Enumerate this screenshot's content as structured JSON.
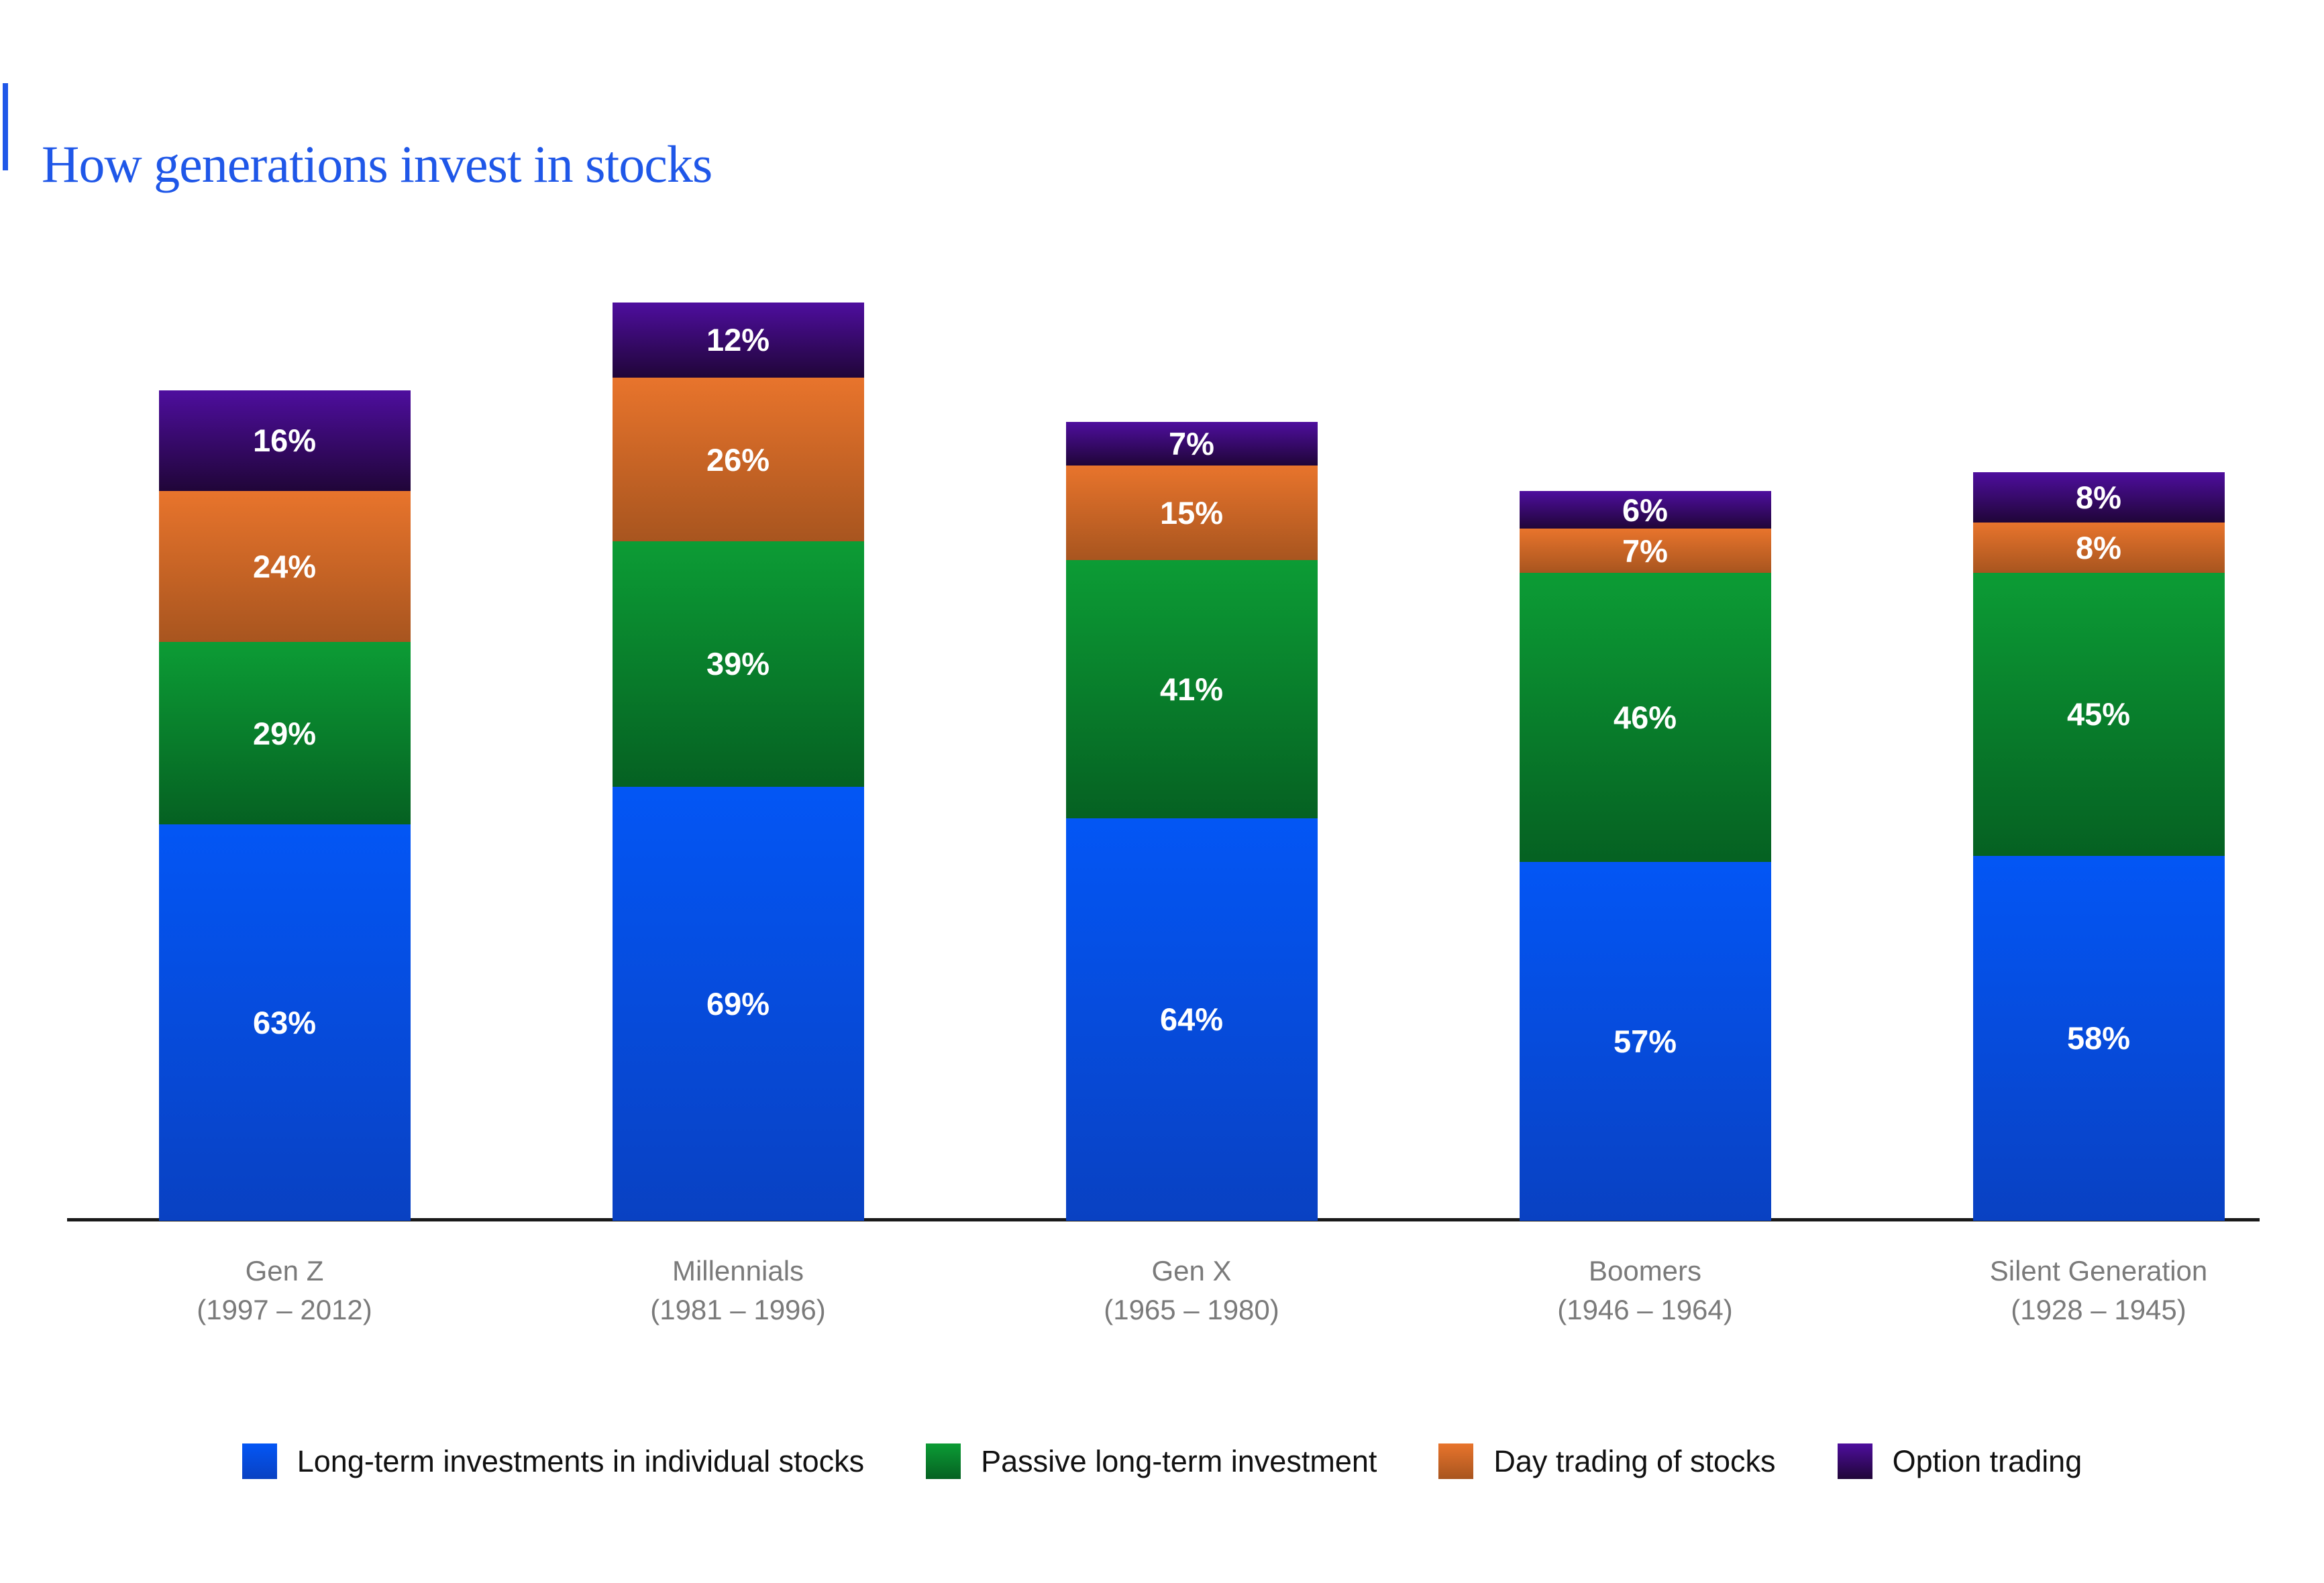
{
  "header": {
    "title": "How generations invest in stocks"
  },
  "colors": {
    "accent": "#1F57E8",
    "axis": "#1A1A1A",
    "category_label": "#7A7A7A",
    "value_label": "#FFFFFF",
    "legend_text": "#111111",
    "background": "#FFFFFF"
  },
  "chart_data": {
    "type": "bar",
    "stacked": true,
    "unit": "%",
    "grid": false,
    "legend_position": "bottom",
    "ylim": [
      0,
      150
    ],
    "categories": [
      {
        "label": "Gen Z",
        "years": "(1997 – 2012)"
      },
      {
        "label": "Millennials",
        "years": "(1981 – 1996)"
      },
      {
        "label": "Gen X",
        "years": "(1965 – 1980)"
      },
      {
        "label": "Boomers",
        "years": "(1946 – 1964)"
      },
      {
        "label": "Silent Generation",
        "years": "(1928 – 1945)"
      }
    ],
    "series": [
      {
        "name": "Long-term investments in individual stocks",
        "values": [
          63,
          69,
          64,
          57,
          58
        ],
        "color_top": "#0356F5",
        "color_bottom": "#0941C2"
      },
      {
        "name": "Passive long-term investment",
        "values": [
          29,
          39,
          41,
          46,
          45
        ],
        "color_top": "#0C9C35",
        "color_bottom": "#056122"
      },
      {
        "name": "Day trading of stocks",
        "values": [
          24,
          26,
          15,
          7,
          8
        ],
        "color_top": "#E8742C",
        "color_bottom": "#A8551F"
      },
      {
        "name": "Option trading",
        "values": [
          16,
          12,
          7,
          6,
          8
        ],
        "color_top": "#4E0E9E",
        "color_bottom": "#200538"
      }
    ]
  }
}
